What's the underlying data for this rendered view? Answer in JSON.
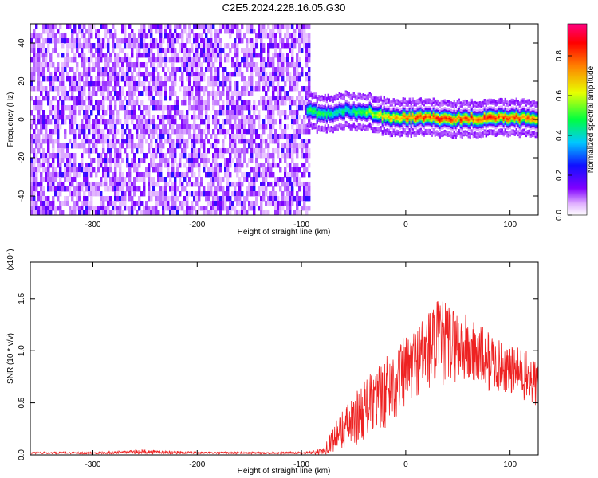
{
  "title": "C2E5.2024.228.16.05.G30",
  "chart_data": [
    {
      "type": "heatmap",
      "xlabel": "Height of straight line (km)",
      "ylabel": "Frequency (Hz)",
      "xlim": [
        -360,
        127
      ],
      "ylim": [
        -50,
        50
      ],
      "xticks": [
        -300,
        -200,
        -100,
        0,
        100
      ],
      "yticks": [
        -40,
        -20,
        0,
        20,
        40
      ],
      "colorbar": {
        "label": "Normalized spectral amplitude",
        "range": [
          0,
          0.96
        ],
        "ticks": [
          "0.0",
          "0.2",
          "0.4",
          "0.6",
          "0.8"
        ],
        "colormap": [
          "#ffffff",
          "#a000ff",
          "#2000ff",
          "#00e0ff",
          "#00ff40",
          "#f0ff00",
          "#ff8000",
          "#ff0000",
          "#ff0080"
        ]
      },
      "noise_region_x": [
        -360,
        -92
      ],
      "signal_track": {
        "x": [
          -95,
          -85,
          -75,
          -65,
          -55,
          -45,
          -35,
          -25,
          -15,
          -5,
          5,
          15,
          25,
          35,
          45,
          55,
          65,
          75,
          85,
          95,
          105,
          115,
          125
        ],
        "freq": [
          5,
          3,
          3,
          4,
          5,
          4,
          4,
          2,
          1,
          1,
          1,
          1,
          1,
          0.5,
          0.5,
          0.5,
          0.5,
          0.5,
          1,
          1,
          1,
          1,
          1
        ],
        "peak_amplitude": [
          0.5,
          0.55,
          0.5,
          0.5,
          0.45,
          0.55,
          0.6,
          0.7,
          0.75,
          0.8,
          0.85,
          0.9,
          0.85,
          0.95,
          0.9,
          0.9,
          0.85,
          0.9,
          0.9,
          0.85,
          0.85,
          0.85,
          0.8
        ]
      },
      "grid": false
    },
    {
      "type": "line",
      "xlabel": "Height of straight line (km)",
      "ylabel": "SNR (10 * v/v)",
      "y_multiplier": "(x10⁴)",
      "xlim": [
        -360,
        127
      ],
      "ylim": [
        0,
        1.85
      ],
      "xticks": [
        -300,
        -200,
        -100,
        0,
        100
      ],
      "yticks": [
        "0.0",
        "0.5",
        "1.0",
        "1.5"
      ],
      "color": "#ee2222",
      "series": [
        {
          "x": [
            -360,
            -300,
            -250,
            -200,
            -150,
            -100,
            -80,
            -70,
            -60,
            -50,
            -40,
            -30,
            -20,
            -10,
            0,
            10,
            20,
            30,
            40,
            50,
            60,
            70,
            80,
            90,
            100,
            110,
            120,
            127
          ],
          "y": [
            0.02,
            0.02,
            0.03,
            0.02,
            0.02,
            0.02,
            0.03,
            0.15,
            0.25,
            0.32,
            0.45,
            0.5,
            0.6,
            0.7,
            0.8,
            0.9,
            1.0,
            1.05,
            1.08,
            1.05,
            1.0,
            0.95,
            0.9,
            0.85,
            0.82,
            0.78,
            0.72,
            0.65
          ],
          "spread": [
            0.01,
            0.01,
            0.02,
            0.01,
            0.01,
            0.01,
            0.03,
            0.12,
            0.2,
            0.25,
            0.3,
            0.3,
            0.35,
            0.35,
            0.35,
            0.35,
            0.4,
            0.45,
            0.4,
            0.35,
            0.35,
            0.3,
            0.3,
            0.25,
            0.25,
            0.25,
            0.25,
            0.25
          ]
        }
      ],
      "grid": false
    }
  ]
}
